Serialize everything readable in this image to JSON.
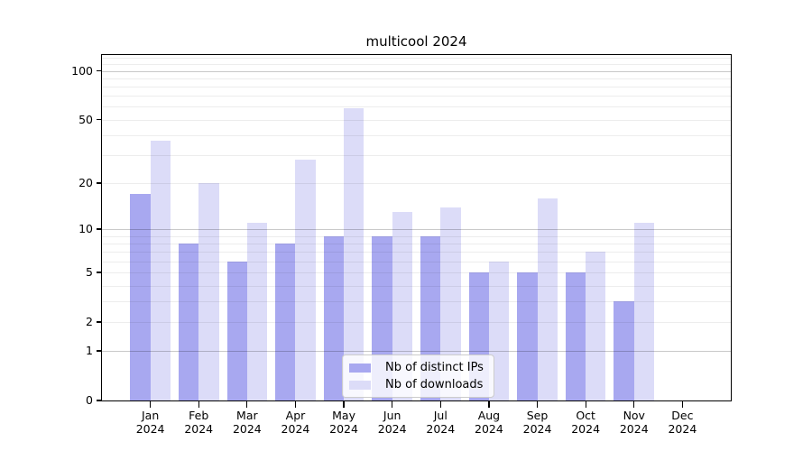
{
  "chart_data": {
    "type": "bar",
    "title": "multicool 2024",
    "categories": [
      "Jan 2024",
      "Feb 2024",
      "Mar 2024",
      "Apr 2024",
      "May 2024",
      "Jun 2024",
      "Jul 2024",
      "Aug 2024",
      "Sep 2024",
      "Oct 2024",
      "Nov 2024",
      "Dec 2024"
    ],
    "series": [
      {
        "name": "Nb of distinct IPs",
        "color": "#a8a8f0",
        "values": [
          17,
          8,
          6,
          8,
          9,
          9,
          9,
          5,
          5,
          5,
          3,
          0
        ]
      },
      {
        "name": "Nb of downloads",
        "color": "#dcdcf8",
        "values": [
          37,
          20,
          11,
          28,
          59,
          13,
          14,
          6,
          16,
          7,
          11,
          0
        ]
      }
    ],
    "yscale": "log1p",
    "ylim": [
      0,
      125
    ],
    "yticks": [
      0,
      1,
      2,
      5,
      10,
      20,
      50,
      100
    ],
    "xlabel": "",
    "ylabel": "",
    "grid": {
      "major": [
        1,
        10,
        100
      ],
      "minor": [
        2,
        3,
        4,
        5,
        6,
        7,
        8,
        9,
        20,
        30,
        40,
        50,
        60,
        70,
        80,
        90,
        110,
        120
      ],
      "major_color": "rgba(0,0,0,0.21)",
      "minor_color": "rgba(0,0,0,0.07)"
    },
    "legend": {
      "position": "lower center inside",
      "items": [
        "Nb of distinct IPs",
        "Nb of downloads"
      ]
    },
    "axis_color": "#000000",
    "background_color": "#ffffff"
  }
}
